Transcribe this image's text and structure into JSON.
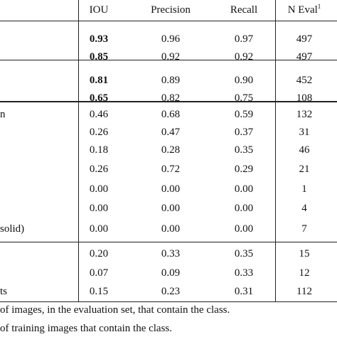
{
  "table": {
    "headers": {
      "iou": "IOU",
      "precision": "Precision",
      "recall": "Recall",
      "n_eval": "N Eval",
      "n_eval_sup": "1"
    },
    "rows": [
      {
        "label": "",
        "iou": "0.93",
        "precision": "0.96",
        "recall": "0.97",
        "n_eval": "497",
        "iou_bold": true
      },
      {
        "label": "",
        "iou": "0.85",
        "precision": "0.92",
        "recall": "0.92",
        "n_eval": "497",
        "iou_bold": true
      },
      {
        "label": "",
        "iou": "0.81",
        "precision": "0.89",
        "recall": "0.90",
        "n_eval": "452",
        "iou_bold": true
      },
      {
        "label": "",
        "iou": "0.65",
        "precision": "0.82",
        "recall": "0.75",
        "n_eval": "108",
        "iou_bold": true
      },
      {
        "label": "n",
        "iou": "0.46",
        "precision": "0.68",
        "recall": "0.59",
        "n_eval": "132"
      },
      {
        "label": "",
        "iou": "0.26",
        "precision": "0.47",
        "recall": "0.37",
        "n_eval": "31"
      },
      {
        "label": "",
        "iou": "0.18",
        "precision": "0.28",
        "recall": "0.35",
        "n_eval": "46"
      },
      {
        "label": "",
        "iou": "0.26",
        "precision": "0.72",
        "recall": "0.29",
        "n_eval": "21"
      },
      {
        "label": "",
        "iou": "0.00",
        "precision": "0.00",
        "recall": "0.00",
        "n_eval": "1"
      },
      {
        "label": "",
        "iou": "0.00",
        "precision": "0.00",
        "recall": "0.00",
        "n_eval": "4"
      },
      {
        "label": "solid)",
        "iou": "0.00",
        "precision": "0.00",
        "recall": "0.00",
        "n_eval": "7"
      },
      {
        "label": "",
        "iou": "0.20",
        "precision": "0.33",
        "recall": "0.35",
        "n_eval": "15"
      },
      {
        "label": "",
        "iou": "0.07",
        "precision": "0.09",
        "recall": "0.33",
        "n_eval": "12"
      },
      {
        "label": "ts",
        "iou": "0.15",
        "precision": "0.23",
        "recall": "0.31",
        "n_eval": "112"
      }
    ]
  },
  "footnotes": [
    "of images, in the evaluation set, that contain the class.",
    "of training images that contain the class."
  ]
}
